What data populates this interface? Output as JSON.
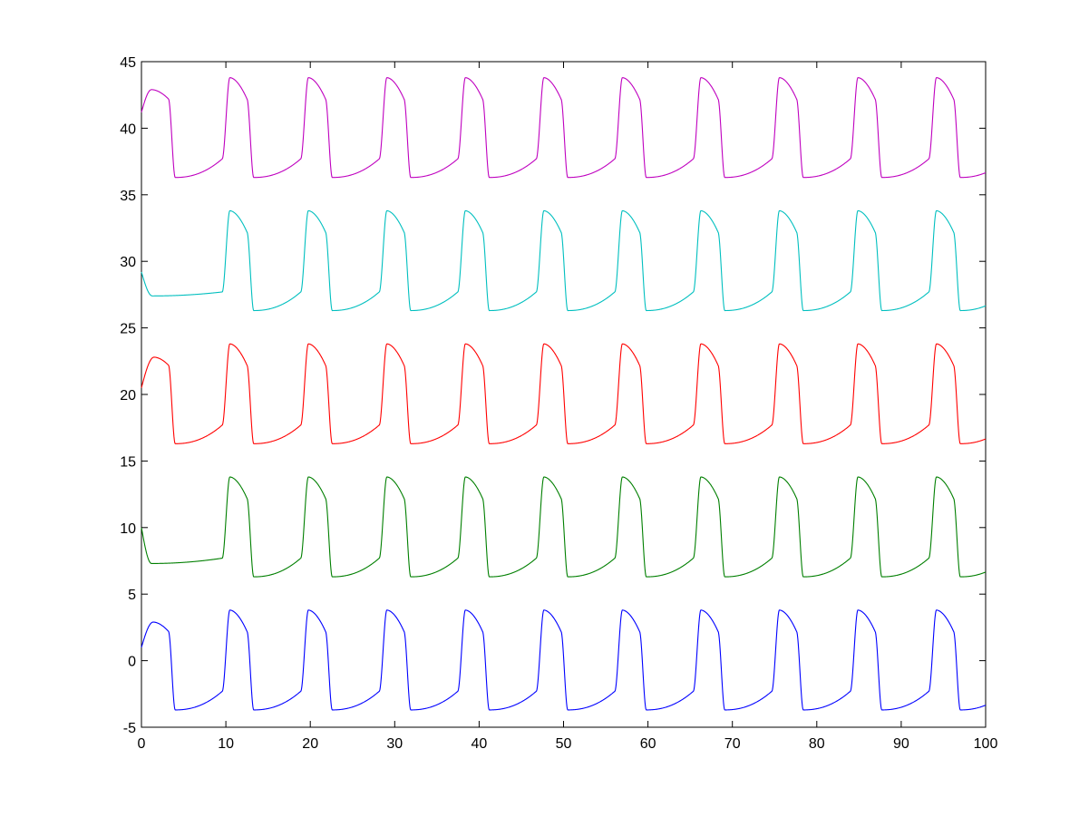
{
  "chart_data": {
    "type": "line",
    "title": "",
    "xlabel": "",
    "ylabel": "",
    "xlim": [
      0,
      100
    ],
    "ylim": [
      -5,
      45
    ],
    "xticks": [
      0,
      10,
      20,
      30,
      40,
      50,
      60,
      70,
      80,
      90,
      100
    ],
    "yticks": [
      -5,
      0,
      5,
      10,
      15,
      20,
      25,
      30,
      35,
      40,
      45
    ],
    "xtick_labels": [
      "0",
      "10",
      "20",
      "30",
      "40",
      "50",
      "60",
      "70",
      "80",
      "90",
      "100"
    ],
    "ytick_labels": [
      "-5",
      "0",
      "5",
      "10",
      "15",
      "20",
      "25",
      "30",
      "35",
      "40",
      "45"
    ],
    "grid": false,
    "legend": "none",
    "waveform": {
      "period": 9.3,
      "rise_start_phase": 0.27,
      "rise_duration": 0.9,
      "fall_start_phase": 3.2,
      "fall_duration": 0.8,
      "upper_level": 3.8,
      "upper_end_level": 2.2,
      "lower_level": -3.7,
      "lower_end_level": -2.3
    },
    "series": [
      {
        "color": "#0000ff",
        "offset": 0,
        "x_start": 0,
        "y_start": 1.0,
        "initial_peak": {
          "x": 1.4,
          "y": 2.9
        }
      },
      {
        "color": "#007f00",
        "offset": 10,
        "x_start": 0,
        "y_start": 10.0,
        "initial_trough": {
          "x": 1.2,
          "y": 7.3
        }
      },
      {
        "color": "#ff0000",
        "offset": 20,
        "x_start": 0,
        "y_start": 20.5,
        "initial_peak": {
          "x": 1.5,
          "y": 22.8
        }
      },
      {
        "color": "#00bfbf",
        "offset": 30,
        "x_start": 0,
        "y_start": 29.2,
        "initial_trough": {
          "x": 1.3,
          "y": 27.4
        }
      },
      {
        "color": "#bf00bf",
        "offset": 40,
        "x_start": 0,
        "y_start": 41.2,
        "initial_peak": {
          "x": 1.2,
          "y": 42.9
        }
      }
    ]
  }
}
